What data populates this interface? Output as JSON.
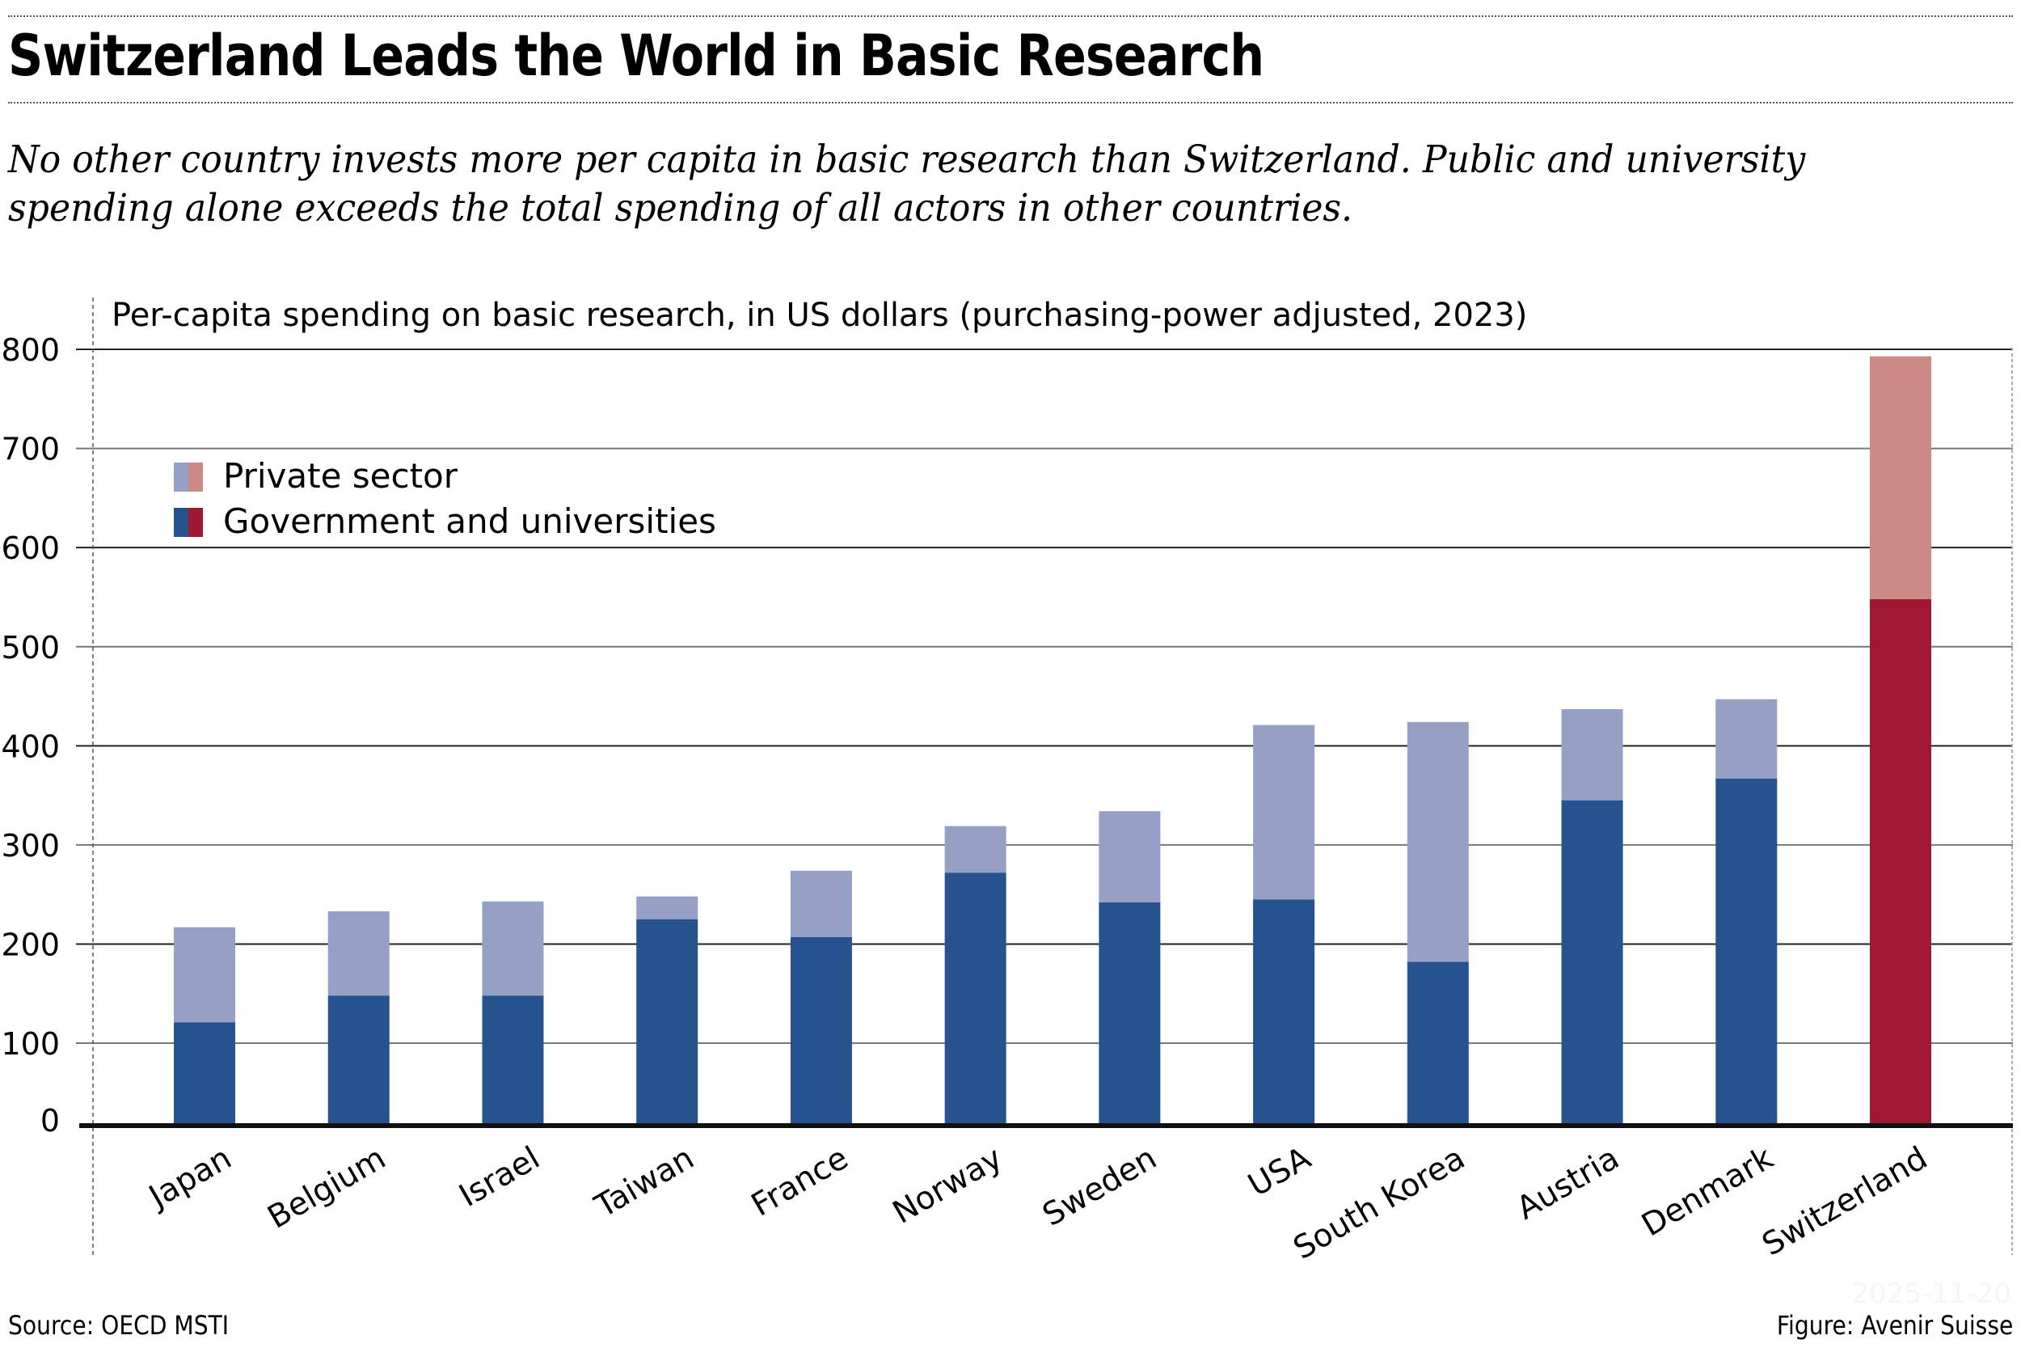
{
  "header": {
    "title": "Switzerland Leads the World in Basic Research",
    "subtitle": "No other country invests more per capita in basic research than Switzerland. Public and university spending alone exceeds the total spending of all actors in other countries."
  },
  "footer": {
    "source": "Source: OECD MSTI",
    "credit": "Figure: Avenir Suisse",
    "watermark": "2025-11-20"
  },
  "colors": {
    "gov": "#26538E",
    "private": "#96A0C5",
    "gov_highlight": "#A11834",
    "private_highlight": "#CC8A86"
  },
  "chart_data": {
    "type": "bar",
    "stacked": true,
    "title": "Per-capita spending on basic research, in US dollars (purchasing-power adjusted, 2023)",
    "xlabel": "",
    "ylabel": "",
    "ylim": [
      0,
      800
    ],
    "yticks": [
      0,
      100,
      200,
      300,
      400,
      500,
      600,
      700,
      800
    ],
    "grid": true,
    "legend_position": "top-left",
    "highlight_category": "Switzerland",
    "categories": [
      "Japan",
      "Belgium",
      "Israel",
      "Taiwan",
      "France",
      "Norway",
      "Sweden",
      "USA",
      "South Korea",
      "Austria",
      "Denmark",
      "Switzerland"
    ],
    "series": [
      {
        "name": "Government and universities",
        "values": [
          121,
          148,
          148,
          225,
          207,
          272,
          242,
          245,
          182,
          345,
          367,
          548
        ]
      },
      {
        "name": "Private sector",
        "values": [
          96,
          85,
          95,
          23,
          67,
          47,
          92,
          176,
          242,
          92,
          80,
          245
        ]
      }
    ],
    "legend": [
      "Private sector",
      "Government and universities"
    ]
  }
}
